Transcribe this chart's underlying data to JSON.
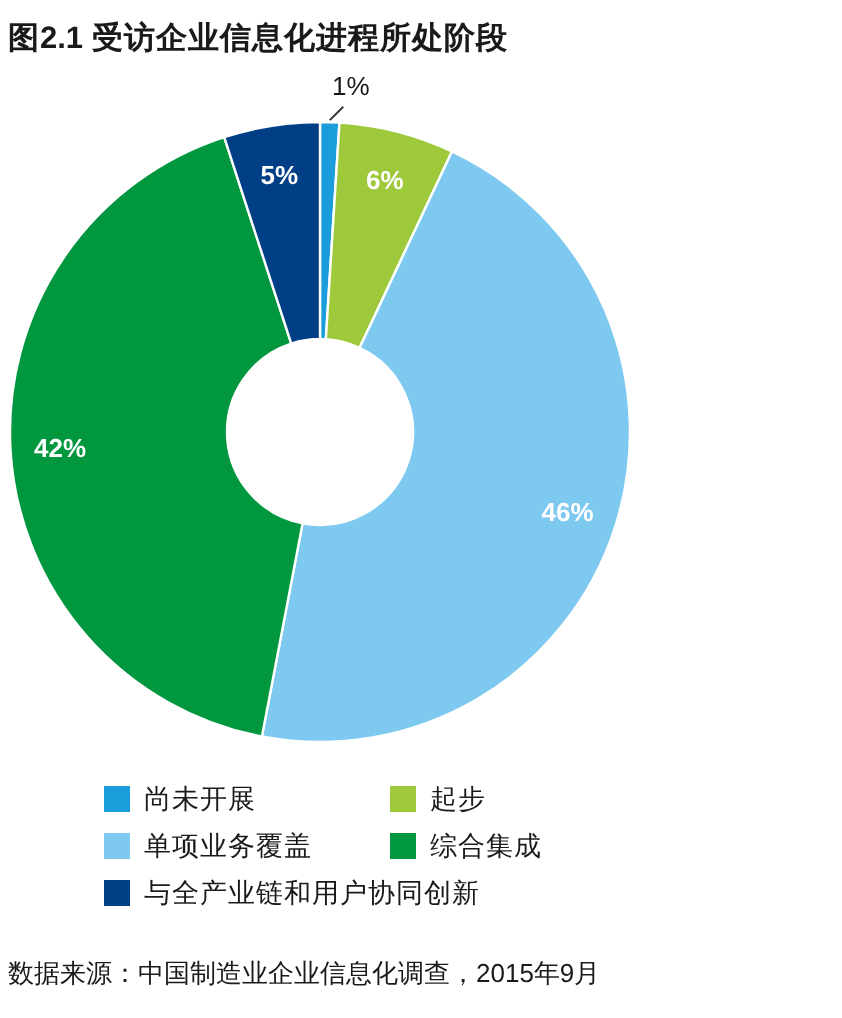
{
  "chart_data": {
    "type": "donut",
    "title": "图2.1 受访企业信息化进程所处阶段",
    "categories": [
      "尚未开展",
      "起步",
      "单项业务覆盖",
      "综合集成",
      "与全产业链和用户协同创新"
    ],
    "values": [
      1,
      6,
      46,
      42,
      5
    ],
    "colors": [
      "#1b9ddb",
      "#9dc93b",
      "#7ec9f0",
      "#00973f",
      "#003e85"
    ],
    "value_labels": [
      "1%",
      "6%",
      "46%",
      "42%",
      "5%"
    ],
    "legend": "bottom",
    "annotations": [
      "数据来源：中国制造业企业信息化调查，2015年9月"
    ]
  }
}
